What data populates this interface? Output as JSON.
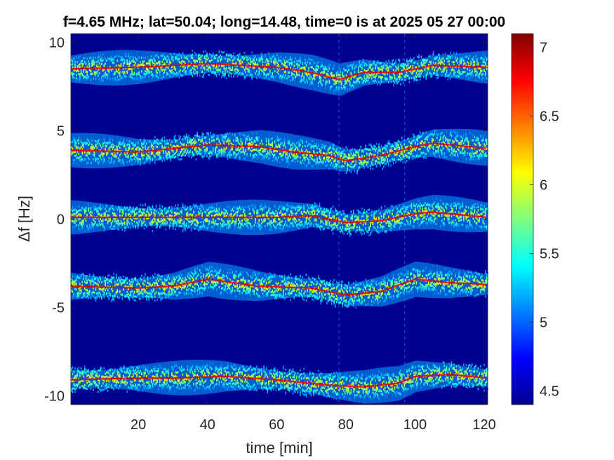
{
  "chart_data": {
    "type": "heatmap",
    "title": "f=4.65 MHz;  lat=50.04; long=14.48, time=0 is at 2025 05 27 00:00",
    "xlabel": "time [min]",
    "ylabel": "Δf [Hz]",
    "xlim": [
      0.5,
      121
    ],
    "ylim": [
      -10.5,
      10.5
    ],
    "xticks": [
      20,
      40,
      60,
      80,
      100,
      120
    ],
    "yticks": [
      -10,
      -5,
      0,
      5,
      10
    ],
    "xtick_labels": [
      "20",
      "40",
      "60",
      "80",
      "100",
      "120"
    ],
    "ytick_labels": [
      "-10",
      "-5",
      "0",
      "5",
      "10"
    ],
    "colorbar": {
      "colormap": "jet",
      "clim": [
        4.4,
        7.1
      ],
      "ticks": [
        4.5,
        5,
        5.5,
        6,
        6.5,
        7
      ],
      "tick_labels": [
        "4.5",
        "5",
        "5.5",
        "6",
        "6.5",
        "7"
      ]
    },
    "background_color": "#00008f",
    "bands": [
      {
        "center_hz": 8.6,
        "trace": [
          [
            0,
            8.5
          ],
          [
            20,
            8.6
          ],
          [
            40,
            8.8
          ],
          [
            60,
            8.6
          ],
          [
            70,
            8.3
          ],
          [
            78,
            7.9
          ],
          [
            85,
            8.3
          ],
          [
            95,
            8.3
          ],
          [
            105,
            8.7
          ],
          [
            121,
            8.6
          ]
        ]
      },
      {
        "center_hz": 4.0,
        "trace": [
          [
            0,
            3.9
          ],
          [
            20,
            3.8
          ],
          [
            40,
            4.2
          ],
          [
            55,
            4.1
          ],
          [
            65,
            3.8
          ],
          [
            75,
            3.6
          ],
          [
            80,
            3.3
          ],
          [
            90,
            3.6
          ],
          [
            100,
            4.1
          ],
          [
            105,
            4.3
          ],
          [
            121,
            4.0
          ]
        ]
      },
      {
        "center_hz": 0.0,
        "trace": [
          [
            0,
            0.1
          ],
          [
            20,
            0.1
          ],
          [
            40,
            0.1
          ],
          [
            60,
            0.1
          ],
          [
            70,
            0.2
          ],
          [
            80,
            -0.2
          ],
          [
            90,
            -0.1
          ],
          [
            100,
            0.3
          ],
          [
            105,
            0.4
          ],
          [
            121,
            0.1
          ]
        ]
      },
      {
        "center_hz": -3.8,
        "trace": [
          [
            0,
            -3.8
          ],
          [
            20,
            -3.9
          ],
          [
            30,
            -3.8
          ],
          [
            40,
            -3.4
          ],
          [
            55,
            -3.8
          ],
          [
            70,
            -3.9
          ],
          [
            80,
            -4.3
          ],
          [
            90,
            -4.1
          ],
          [
            100,
            -3.4
          ],
          [
            110,
            -3.6
          ],
          [
            121,
            -3.7
          ]
        ]
      },
      {
        "center_hz": -9.1,
        "trace": [
          [
            0,
            -9.1
          ],
          [
            20,
            -9.0
          ],
          [
            30,
            -9.0
          ],
          [
            45,
            -8.9
          ],
          [
            60,
            -9.1
          ],
          [
            75,
            -9.4
          ],
          [
            85,
            -9.5
          ],
          [
            95,
            -9.3
          ],
          [
            100,
            -8.9
          ],
          [
            110,
            -8.8
          ],
          [
            121,
            -9.0
          ]
        ]
      }
    ],
    "vertical_artifacts_min": [
      78,
      97
    ]
  }
}
